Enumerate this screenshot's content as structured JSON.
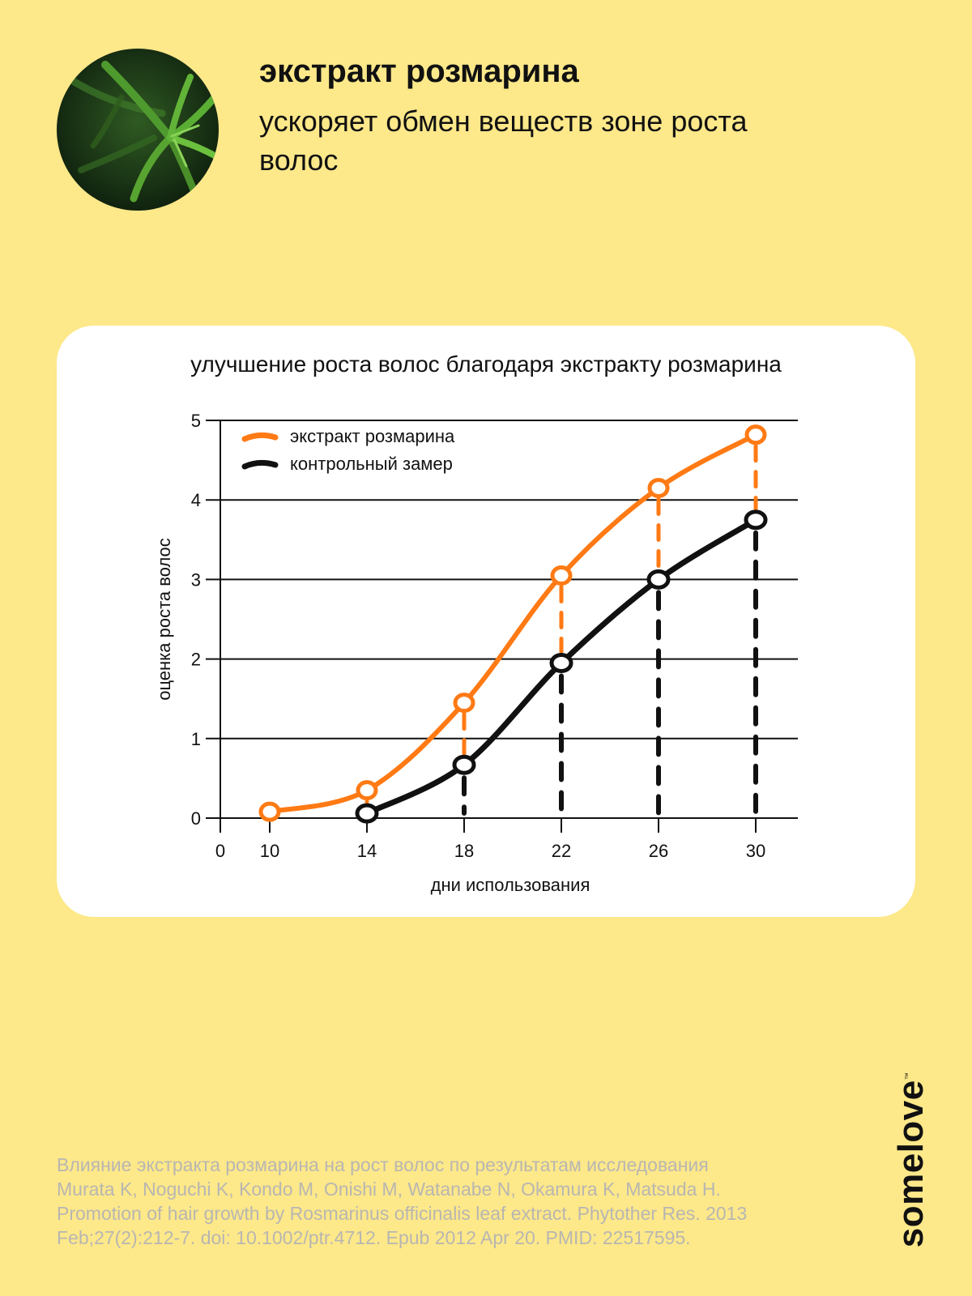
{
  "header": {
    "title": "экстракт розмарина",
    "subtitle": "ускоряет обмен веществ зоне роста волос"
  },
  "colors": {
    "background": "#fde88a",
    "card": "#ffffff",
    "series_rosemary": "#ff7a14",
    "series_control": "#111111",
    "footnote": "#b8b6b2"
  },
  "chart_data": {
    "type": "line",
    "title": "улучшение роста волос благодаря экстракту розмарина",
    "xlabel": "дни использования",
    "ylabel": "оценка роста волос",
    "xlim": [
      0,
      30
    ],
    "ylim": [
      0,
      5
    ],
    "x_ticks": [
      "0",
      "10",
      "14",
      "18",
      "22",
      "26",
      "30"
    ],
    "y_ticks": [
      "0",
      "1",
      "2",
      "3",
      "4",
      "5"
    ],
    "grid": "horizontal",
    "legend_position": "top-left",
    "series": [
      {
        "name": "экстракт розмарина",
        "color": "#ff7a14",
        "x": [
          10,
          14,
          18,
          22,
          26,
          30
        ],
        "y": [
          0.08,
          0.35,
          1.45,
          3.05,
          4.15,
          4.82
        ]
      },
      {
        "name": "контрольный замер",
        "color": "#111111",
        "x": [
          14,
          18,
          22,
          26,
          30
        ],
        "y": [
          0.06,
          0.67,
          1.95,
          3.0,
          3.75
        ]
      }
    ]
  },
  "footnote": {
    "lines": [
      "Влияние экстракта розмарина на рост волос по результатам исследования",
      "Murata K, Noguchi K, Kondo M, Onishi M, Watanabe N, Okamura K, Matsuda H.",
      "Promotion of hair growth by Rosmarinus officinalis leaf extract. Phytother Res. 2013",
      "Feb;27(2):212-7. doi: 10.1002/ptr.4712. Epub 2012 Apr 20. PMID: 22517595."
    ]
  },
  "brand": {
    "name": "somelove",
    "mark": "™"
  }
}
